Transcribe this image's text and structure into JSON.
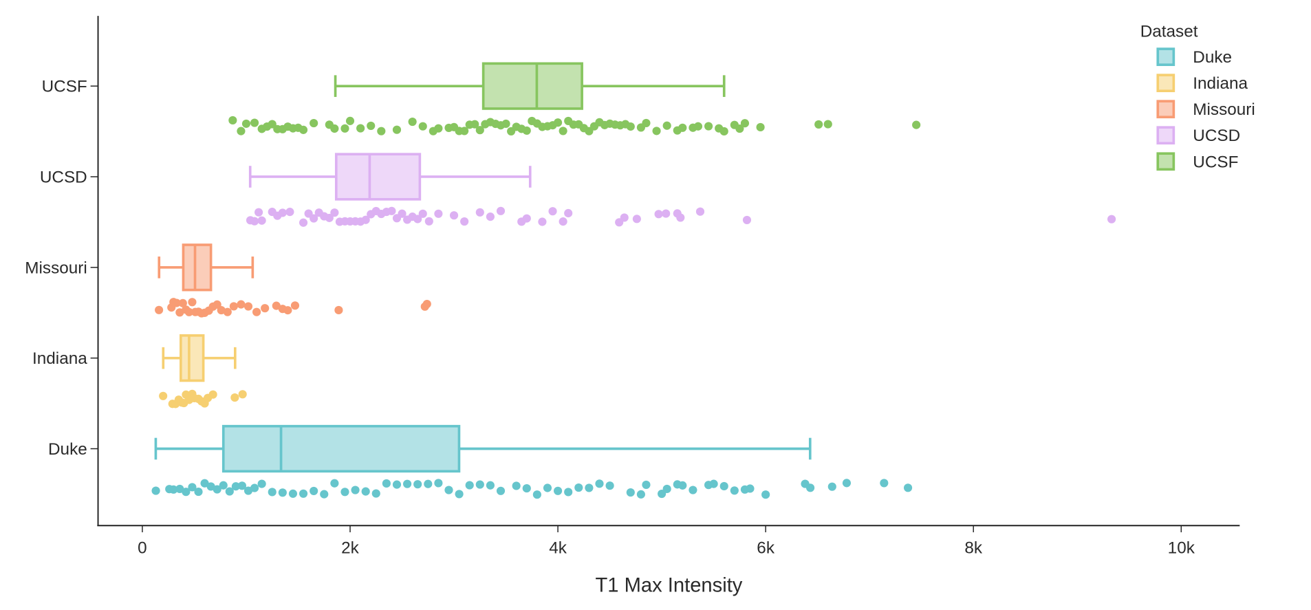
{
  "chart_data": {
    "type": "box",
    "orientation": "horizontal",
    "title": "",
    "xlabel": "T1 Max Intensity",
    "ylabel": "",
    "xlim": [
      -430,
      10560
    ],
    "xticks": [
      0,
      2000,
      4000,
      6000,
      8000,
      10000
    ],
    "xtick_labels": [
      "0",
      "2k",
      "4k",
      "6k",
      "8k",
      "10k"
    ],
    "grid": false,
    "categories": [
      "UCSF",
      "UCSD",
      "Missouri",
      "Indiana",
      "Duke"
    ],
    "legend": {
      "title": "Dataset",
      "position": "top-right",
      "entries": [
        "Duke",
        "Indiana",
        "Missouri",
        "UCSD",
        "UCSF"
      ]
    },
    "series": [
      {
        "name": "UCSF",
        "color": "#87c55f",
        "fill": "#c3e2af",
        "box": {
          "whisker_low": 1858,
          "q1": 3282,
          "median": 3797,
          "q3": 4232,
          "whisker_high": 5600
        },
        "points": [
          870,
          950,
          1000,
          1080,
          1150,
          1200,
          1250,
          1300,
          1350,
          1400,
          1450,
          1500,
          1550,
          1650,
          1800,
          1850,
          1950,
          2000,
          2100,
          2200,
          2300,
          2450,
          2600,
          2700,
          2800,
          2850,
          2950,
          3000,
          3050,
          3100,
          3150,
          3200,
          3250,
          3300,
          3350,
          3400,
          3450,
          3500,
          3550,
          3600,
          3650,
          3700,
          3750,
          3800,
          3850,
          3900,
          3950,
          4000,
          4050,
          4100,
          4150,
          4200,
          4250,
          4300,
          4350,
          4400,
          4450,
          4500,
          4550,
          4600,
          4650,
          4700,
          4800,
          4850,
          4950,
          5050,
          5150,
          5200,
          5300,
          5350,
          5450,
          5550,
          5600,
          5700,
          5750,
          5800,
          5950,
          6510,
          6600,
          7450
        ]
      },
      {
        "name": "UCSD",
        "color": "#dcb0f2",
        "fill": "#eed8f9",
        "box": {
          "whisker_low": 1038,
          "q1": 1866,
          "median": 2188,
          "q3": 2671,
          "whisker_high": 3733
        },
        "points": [
          1040,
          1080,
          1120,
          1150,
          1250,
          1300,
          1350,
          1420,
          1550,
          1600,
          1650,
          1700,
          1750,
          1800,
          1850,
          1900,
          1950,
          2000,
          2050,
          2100,
          2150,
          2200,
          2250,
          2300,
          2350,
          2400,
          2450,
          2500,
          2550,
          2600,
          2650,
          2700,
          2760,
          2850,
          3000,
          3100,
          3250,
          3350,
          3450,
          3650,
          3700,
          3850,
          3950,
          4050,
          4100,
          4590,
          4640,
          4760,
          4970,
          5040,
          5150,
          5180,
          5370,
          5820,
          9330
        ]
      },
      {
        "name": "Missouri",
        "color": "#f89c74",
        "fill": "#fbcdb9",
        "box": {
          "whisker_low": 161,
          "q1": 394,
          "median": 507,
          "q3": 660,
          "whisker_high": 1062
        },
        "points": [
          160,
          280,
          300,
          330,
          360,
          390,
          420,
          450,
          480,
          510,
          540,
          570,
          600,
          640,
          680,
          720,
          760,
          820,
          880,
          950,
          1020,
          1100,
          1180,
          1290,
          1350,
          1400,
          1470,
          1890,
          2720,
          2740
        ]
      },
      {
        "name": "Indiana",
        "color": "#f6cf71",
        "fill": "#fae7b8",
        "box": {
          "whisker_low": 201,
          "q1": 370,
          "median": 450,
          "q3": 587,
          "whisker_high": 893
        },
        "points": [
          200,
          290,
          320,
          350,
          380,
          400,
          420,
          450,
          480,
          500,
          540,
          570,
          600,
          630,
          680,
          890,
          965
        ]
      },
      {
        "name": "Duke",
        "color": "#66c5cc",
        "fill": "#b3e2e6",
        "box": {
          "whisker_low": 129,
          "q1": 780,
          "median": 1335,
          "q3": 3049,
          "whisker_high": 6428
        },
        "points": [
          130,
          260,
          300,
          360,
          420,
          480,
          540,
          600,
          660,
          720,
          780,
          840,
          900,
          960,
          1020,
          1080,
          1150,
          1250,
          1350,
          1450,
          1550,
          1650,
          1750,
          1850,
          1950,
          2050,
          2150,
          2250,
          2350,
          2450,
          2550,
          2650,
          2750,
          2850,
          2950,
          3050,
          3150,
          3250,
          3350,
          3450,
          3600,
          3700,
          3800,
          3900,
          4000,
          4100,
          4200,
          4300,
          4400,
          4500,
          4700,
          4800,
          4850,
          5000,
          5050,
          5150,
          5200,
          5300,
          5450,
          5500,
          5600,
          5700,
          5800,
          5850,
          6000,
          6380,
          6430,
          6640,
          6780,
          7140,
          7370
        ]
      }
    ]
  }
}
